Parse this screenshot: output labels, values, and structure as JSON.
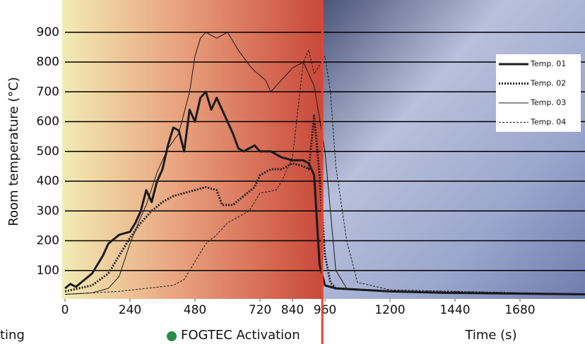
{
  "chart_data": {
    "type": "line",
    "y_label": "Room temperature (°C)",
    "x_label": "Time (s)",
    "annotations": [
      {
        "text": "ting"
      }
    ],
    "activation": {
      "label": "FOGTEC Activation",
      "x": 950,
      "color": "#e8452a"
    },
    "xlim": [
      0,
      1920
    ],
    "ylim": [
      0,
      1000
    ],
    "xticks": [
      0,
      240,
      480,
      720,
      840,
      960,
      1200,
      1440,
      1680
    ],
    "yticks": [
      100,
      200,
      300,
      400,
      500,
      600,
      700,
      800,
      900
    ],
    "grid": true,
    "legend": "upper right",
    "series": [
      {
        "name": "Temp. 01",
        "color": "#1a1a1a",
        "weight": "bold",
        "dash": "solid",
        "x": [
          0,
          20,
          40,
          60,
          100,
          140,
          160,
          200,
          240,
          260,
          280,
          300,
          320,
          340,
          360,
          380,
          400,
          420,
          440,
          460,
          480,
          500,
          520,
          540,
          560,
          580,
          600,
          620,
          640,
          660,
          700,
          720,
          760,
          800,
          840,
          880,
          900,
          920,
          940,
          960,
          1000,
          1100,
          1200,
          1400,
          1920
        ],
        "values": [
          40,
          55,
          45,
          60,
          90,
          150,
          190,
          220,
          230,
          260,
          300,
          370,
          330,
          400,
          440,
          520,
          580,
          570,
          500,
          640,
          600,
          680,
          700,
          640,
          680,
          640,
          600,
          560,
          510,
          500,
          520,
          500,
          500,
          480,
          470,
          470,
          460,
          420,
          120,
          50,
          40,
          35,
          30,
          25,
          20
        ]
      },
      {
        "name": "Temp. 02",
        "color": "#1a1a1a",
        "weight": "bold",
        "dash": "dotted",
        "x": [
          0,
          100,
          160,
          200,
          240,
          280,
          320,
          360,
          400,
          440,
          480,
          520,
          560,
          580,
          620,
          660,
          700,
          720,
          760,
          800,
          840,
          880,
          900,
          920,
          940,
          960,
          980,
          1000,
          1200,
          1920
        ],
        "values": [
          30,
          50,
          90,
          150,
          210,
          260,
          300,
          330,
          350,
          360,
          370,
          380,
          370,
          320,
          320,
          350,
          380,
          420,
          440,
          440,
          460,
          450,
          440,
          620,
          420,
          150,
          60,
          40,
          30,
          20
        ]
      },
      {
        "name": "Temp. 03",
        "color": "#1a1a1a",
        "weight": "thin",
        "dash": "solid",
        "x": [
          0,
          100,
          160,
          200,
          240,
          280,
          300,
          340,
          380,
          420,
          460,
          480,
          500,
          520,
          560,
          600,
          640,
          680,
          700,
          740,
          760,
          800,
          840,
          880,
          900,
          920,
          960,
          980,
          1000,
          1040,
          1200,
          1920
        ],
        "values": [
          20,
          25,
          40,
          80,
          190,
          280,
          320,
          430,
          510,
          560,
          700,
          820,
          880,
          900,
          880,
          900,
          840,
          790,
          770,
          740,
          700,
          740,
          780,
          800,
          760,
          720,
          500,
          300,
          100,
          40,
          30,
          20
        ]
      },
      {
        "name": "Temp. 04",
        "color": "#1a1a1a",
        "weight": "thin",
        "dash": "dashed",
        "x": [
          0,
          100,
          200,
          300,
          400,
          440,
          480,
          520,
          560,
          600,
          640,
          680,
          720,
          780,
          800,
          840,
          880,
          900,
          920,
          960,
          980,
          1000,
          1040,
          1080,
          1200,
          1920
        ],
        "values": [
          20,
          25,
          30,
          40,
          50,
          70,
          130,
          190,
          220,
          260,
          280,
          300,
          360,
          370,
          400,
          480,
          800,
          840,
          760,
          820,
          700,
          450,
          200,
          60,
          35,
          20
        ]
      }
    ]
  }
}
